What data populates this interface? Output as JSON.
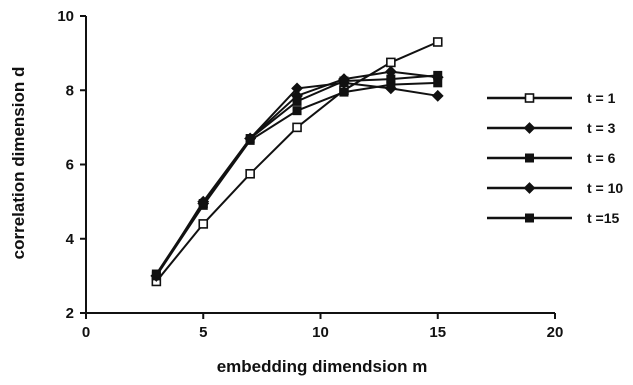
{
  "chart_data": {
    "type": "line",
    "title": "",
    "xlabel": "embedding dimendsion m",
    "ylabel": "correlation dimension d",
    "xlim": [
      0,
      20
    ],
    "ylim": [
      2,
      10
    ],
    "xticks": [
      0,
      5,
      10,
      15,
      20
    ],
    "yticks": [
      2,
      4,
      6,
      8,
      10
    ],
    "grid": false,
    "legend_position": "right",
    "x": [
      3,
      5,
      7,
      9,
      11,
      13,
      15
    ],
    "series": [
      {
        "name": "t = 1",
        "marker": "open-square",
        "values": [
          2.85,
          4.4,
          5.75,
          7.0,
          8.0,
          8.75,
          9.3
        ]
      },
      {
        "name": "t = 3",
        "marker": "filled-diamond",
        "values": [
          3.0,
          4.95,
          6.7,
          8.05,
          8.2,
          8.05,
          7.85
        ]
      },
      {
        "name": "t = 6",
        "marker": "filled-square",
        "values": [
          3.0,
          4.9,
          6.65,
          7.45,
          7.95,
          8.15,
          8.2
        ]
      },
      {
        "name": "t = 10",
        "marker": "filled-diamond",
        "values": [
          3.0,
          5.0,
          6.7,
          7.85,
          8.3,
          8.5,
          8.35
        ]
      },
      {
        "name": "t =15",
        "marker": "filled-square",
        "values": [
          3.05,
          4.95,
          6.7,
          7.7,
          8.25,
          8.3,
          8.4
        ]
      }
    ]
  }
}
